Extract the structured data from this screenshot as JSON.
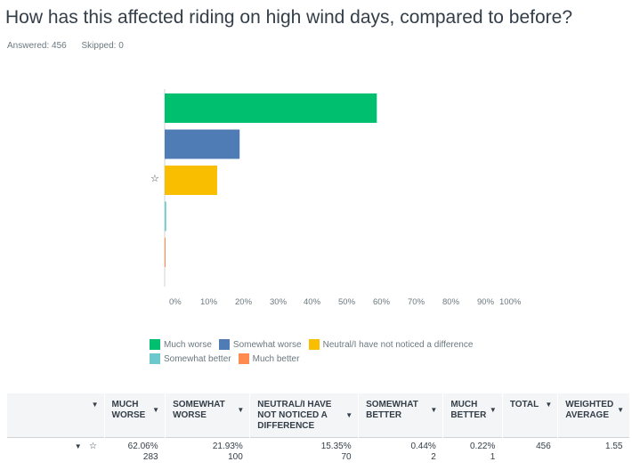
{
  "question": {
    "title": "How has this affected riding on high wind days, compared to before?",
    "answered": "Answered: 456",
    "skipped": "Skipped: 0"
  },
  "chart_data": {
    "type": "bar",
    "orientation": "horizontal",
    "categories": [
      "Much worse",
      "Somewhat worse",
      "Neutral/I have not noticed a difference",
      "Somewhat better",
      "Much better"
    ],
    "values": [
      62.06,
      21.93,
      15.35,
      0.44,
      0.22
    ],
    "colors": [
      "#00bf6f",
      "#507cb6",
      "#f9be00",
      "#6bc8cd",
      "#ff8b4f"
    ],
    "x_ticks": [
      "0%",
      "10%",
      "20%",
      "30%",
      "40%",
      "50%",
      "60%",
      "70%",
      "80%",
      "90%",
      "100%"
    ],
    "xlim": [
      0,
      100
    ],
    "legend_position": "bottom",
    "row_marker": "☆"
  },
  "table": {
    "headers": [
      "",
      "MUCH WORSE",
      "SOMEWHAT WORSE",
      "NEUTRAL/I HAVE NOT NOTICED A DIFFERENCE",
      "SOMEWHAT BETTER",
      "MUCH BETTER",
      "TOTAL",
      "WEIGHTED AVERAGE"
    ],
    "row": {
      "marker": "☆",
      "percents": [
        "62.06%",
        "21.93%",
        "15.35%",
        "0.44%",
        "0.22%"
      ],
      "counts": [
        "283",
        "100",
        "70",
        "2",
        "1"
      ],
      "total": "456",
      "weighted_average": "1.55"
    }
  }
}
